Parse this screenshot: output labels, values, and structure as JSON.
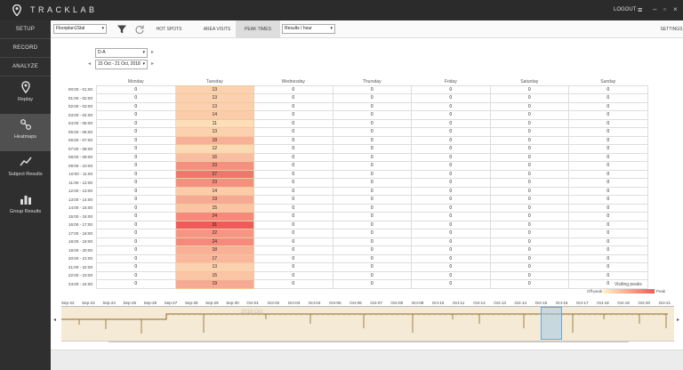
{
  "app": {
    "brand": "TRACKLAB",
    "logout_label": "LOGOUT"
  },
  "sidebar": {
    "top_items": [
      {
        "label": "SETUP"
      },
      {
        "label": "RECORD"
      },
      {
        "label": "ANALYZE"
      }
    ],
    "tools": [
      {
        "label": "Replay",
        "icon": "map-pin-icon"
      },
      {
        "label": "Heatmaps",
        "icon": "heatmap-icon",
        "active": true
      },
      {
        "label": "Subject Results",
        "icon": "trend-chart-icon"
      },
      {
        "label": "Group Results",
        "icon": "bar-chart-icon"
      }
    ]
  },
  "toolbar": {
    "floorplan_select": "Floorplan1Stal",
    "tabs": [
      {
        "label": "HOT SPOTS"
      },
      {
        "label": "AREA VISITS"
      },
      {
        "label": "PEAK TIMES",
        "active": true
      }
    ],
    "results_select": "Results / hour",
    "settings_label": "SETTINGS"
  },
  "filters": {
    "area_select": "D-A",
    "date_range": "15 Oct - 21 Oct, 2018"
  },
  "heatmap": {
    "days": [
      "Monday",
      "Tuesday",
      "Wednesday",
      "Thursday",
      "Friday",
      "Saturday",
      "Sunday"
    ],
    "hours": [
      "00:00 - 01:00",
      "01:00 - 02:00",
      "02:00 - 03:00",
      "03:00 - 04:00",
      "04:00 - 05:00",
      "05:00 - 06:00",
      "06:00 - 07:00",
      "07:00 - 08:00",
      "08:00 - 09:00",
      "09:00 - 10:00",
      "10:00 - 11:00",
      "11:00 - 12:00",
      "12:00 - 13:00",
      "13:00 - 14:00",
      "14:00 - 15:00",
      "15:00 - 16:00",
      "16:00 - 17:00",
      "17:00 - 18:00",
      "18:00 - 19:00",
      "19:00 - 20:00",
      "20:00 - 21:00",
      "21:00 - 22:00",
      "22:00 - 23:00",
      "23:00 - 24:00"
    ],
    "values": [
      [
        0,
        13,
        0,
        0,
        0,
        0,
        0
      ],
      [
        0,
        13,
        0,
        0,
        0,
        0,
        0
      ],
      [
        0,
        13,
        0,
        0,
        0,
        0,
        0
      ],
      [
        0,
        14,
        0,
        0,
        0,
        0,
        0
      ],
      [
        0,
        11,
        0,
        0,
        0,
        0,
        0
      ],
      [
        0,
        13,
        0,
        0,
        0,
        0,
        0
      ],
      [
        0,
        18,
        0,
        0,
        0,
        0,
        0
      ],
      [
        0,
        12,
        0,
        0,
        0,
        0,
        0
      ],
      [
        0,
        16,
        0,
        0,
        0,
        0,
        0
      ],
      [
        0,
        23,
        0,
        0,
        0,
        0,
        0
      ],
      [
        0,
        27,
        0,
        0,
        0,
        0,
        0
      ],
      [
        0,
        23,
        0,
        0,
        0,
        0,
        0
      ],
      [
        0,
        14,
        0,
        0,
        0,
        0,
        0
      ],
      [
        0,
        19,
        0,
        0,
        0,
        0,
        0
      ],
      [
        0,
        15,
        0,
        0,
        0,
        0,
        0
      ],
      [
        0,
        24,
        0,
        0,
        0,
        0,
        0
      ],
      [
        0,
        31,
        0,
        0,
        0,
        0,
        0
      ],
      [
        0,
        22,
        0,
        0,
        0,
        0,
        0
      ],
      [
        0,
        24,
        0,
        0,
        0,
        0,
        0
      ],
      [
        0,
        18,
        0,
        0,
        0,
        0,
        0
      ],
      [
        0,
        17,
        0,
        0,
        0,
        0,
        0
      ],
      [
        0,
        13,
        0,
        0,
        0,
        0,
        0
      ],
      [
        0,
        15,
        0,
        0,
        0,
        0,
        0
      ],
      [
        0,
        19,
        0,
        0,
        0,
        0,
        0
      ]
    ],
    "color_low": "#fff2c6",
    "color_high": "#ef5b5b"
  },
  "legend": {
    "title": "Visiting peaks",
    "low": "Off-peak",
    "high": "Peak"
  },
  "timeline": {
    "labels": [
      "Sep-22",
      "Sep-23",
      "Sep-24",
      "Sep-25",
      "Sep-26",
      "Sep-27",
      "Sep-28",
      "Sep-29",
      "Sep-30",
      "Oct-01",
      "Oct-02",
      "Oct-03",
      "Oct-04",
      "Oct-05",
      "Oct-06",
      "Oct-07",
      "Oct-08",
      "Oct-09",
      "Oct-10",
      "Oct-11",
      "Oct-12",
      "Oct-13",
      "Oct-14",
      "Oct-15",
      "Oct-16",
      "Oct-17",
      "Oct-18",
      "Oct-19",
      "Oct-20",
      "Oct-21"
    ],
    "month_label": "2018 Oct"
  }
}
